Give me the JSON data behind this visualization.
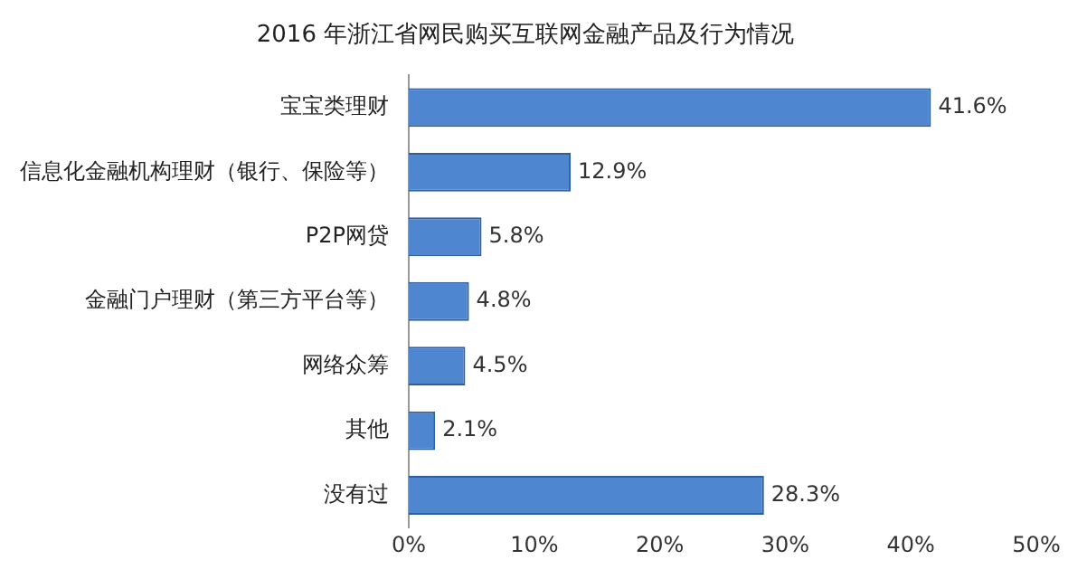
{
  "chart_data": {
    "type": "bar",
    "orientation": "horizontal",
    "title": "2016 年浙江省网民购买互联网金融产品及行为情况",
    "categories": [
      "宝宝类理财",
      "信息化金融机构理财（银行、保险等）",
      "P2P网贷",
      "金融门户理财（第三方平台等）",
      "网络众筹",
      "其他",
      "没有过"
    ],
    "values": [
      41.6,
      12.9,
      5.8,
      4.8,
      4.5,
      2.1,
      28.3
    ],
    "value_labels": [
      "41.6%",
      "12.9%",
      "5.8%",
      "4.8%",
      "4.5%",
      "2.1%",
      "28.3%"
    ],
    "color": "#4f86d0",
    "xlim": [
      0,
      50
    ],
    "xticks": [
      {
        "value": 0,
        "label": "0%"
      },
      {
        "value": 10,
        "label": "10%"
      },
      {
        "value": 20,
        "label": "20%"
      },
      {
        "value": 30,
        "label": "30%"
      },
      {
        "value": 40,
        "label": "40%"
      },
      {
        "value": 50,
        "label": "50%"
      }
    ],
    "grid": false,
    "legend": false
  }
}
